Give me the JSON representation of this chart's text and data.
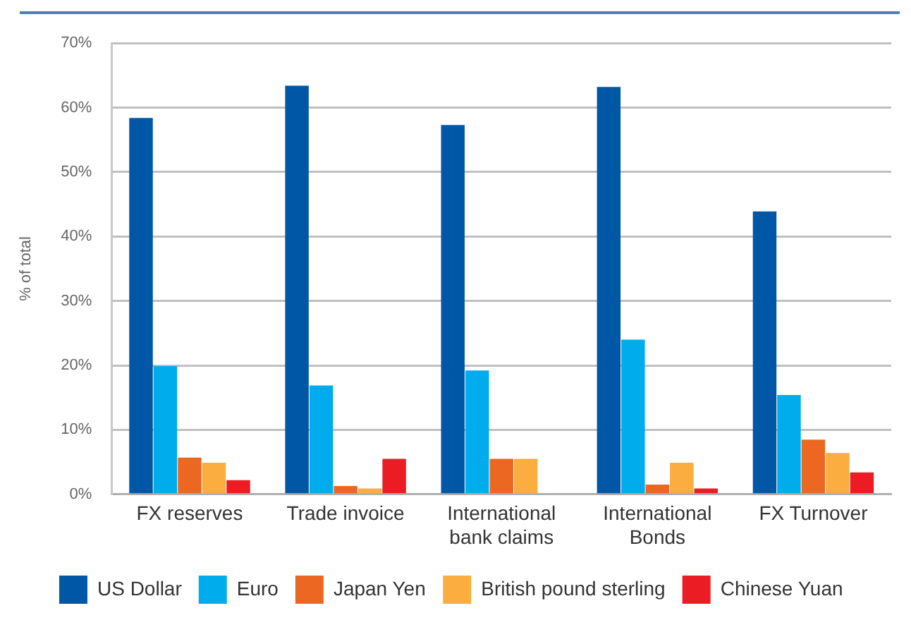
{
  "chart_data": {
    "type": "bar",
    "ylabel": "% of total",
    "categories": [
      "FX reserves",
      "Trade invoice",
      "International bank claims",
      "International Bonds",
      "FX Turnover"
    ],
    "series": [
      {
        "name": "US Dollar",
        "color": "#0057a6",
        "values": [
          58.4,
          63.4,
          57.3,
          63.2,
          43.9
        ]
      },
      {
        "name": "Euro",
        "color": "#00acec",
        "values": [
          19.9,
          16.9,
          19.2,
          24.0,
          15.4
        ]
      },
      {
        "name": "Japan Yen",
        "color": "#ec6822",
        "values": [
          5.7,
          1.3,
          5.5,
          1.5,
          8.5
        ]
      },
      {
        "name": "British pound sterling",
        "color": "#fbad3f",
        "values": [
          4.9,
          0.9,
          5.5,
          4.9,
          6.4
        ]
      },
      {
        "name": "Chinese Yuan",
        "color": "#ec1c24",
        "values": [
          2.2,
          5.5,
          null,
          0.9,
          3.4
        ]
      }
    ],
    "ylim": [
      0,
      70
    ],
    "yticks": [
      {
        "value": 0,
        "label": "0%"
      },
      {
        "value": 10,
        "label": "10%"
      },
      {
        "value": 20,
        "label": "20%"
      },
      {
        "value": 30,
        "label": "30%"
      },
      {
        "value": 40,
        "label": "40%"
      },
      {
        "value": 50,
        "label": "50%"
      },
      {
        "value": 60,
        "label": "60%"
      },
      {
        "value": 70,
        "label": "70%"
      }
    ],
    "grid": "y",
    "legend": "bottom"
  }
}
